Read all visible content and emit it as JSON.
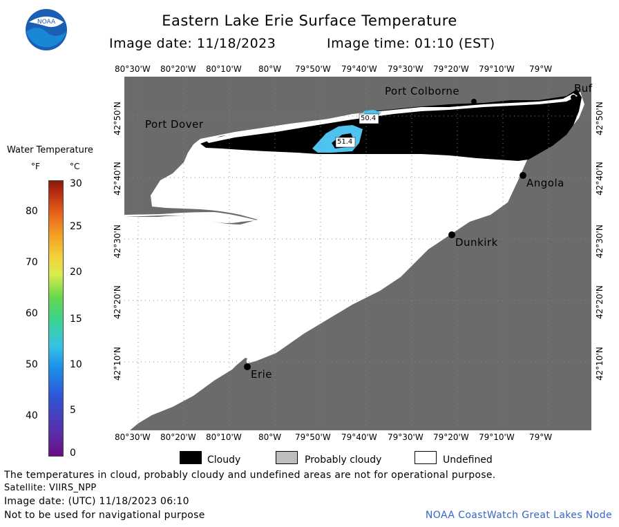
{
  "header": {
    "title": "Eastern Lake Erie Surface Temperature",
    "image_date": "Image date: 11/18/2023",
    "image_time": "Image time: 01:10 (EST)",
    "logo_text": "NOAA"
  },
  "axes": {
    "lon_labels": [
      "80°30'W",
      "80°20'W",
      "80°10'W",
      "80°W",
      "79°50'W",
      "79°40'W",
      "79°30'W",
      "79°20'W",
      "79°10'W",
      "79°W"
    ],
    "lat_labels": [
      "42°50'N",
      "42°40'N",
      "42°30'N",
      "42°20'N",
      "42°10'N"
    ]
  },
  "places": {
    "port_dover": "Port Dover",
    "port_colborne": "Port Colborne",
    "buffalo": "Buf",
    "angola": "Angola",
    "dunkirk": "Dunkirk",
    "erie": "Erie"
  },
  "temperature_labels": {
    "t1": "50.4",
    "t2": "51.4"
  },
  "legend": {
    "title": "Water Temperature",
    "unit_f": "°F",
    "unit_c": "°C",
    "f_ticks": [
      "80",
      "70",
      "60",
      "50",
      "40"
    ],
    "c_ticks": [
      "30",
      "25",
      "20",
      "15",
      "10",
      "5",
      "0"
    ]
  },
  "key": {
    "cloudy": "Cloudy",
    "probably_cloudy": "Probably cloudy",
    "undefined": "Undefined"
  },
  "footer": {
    "disclaimer": "The temperatures in cloud, probably cloudy and undefined areas are not for operational purpose.",
    "satellite": "Satellite: VIIRS_NPP",
    "utc_date": "Image date: (UTC) 11/18/2023  06:10",
    "nav_warning": "Not to be used for navigational purpose",
    "credit": "NOAA CoastWatch Great Lakes Node"
  },
  "colors": {
    "land": "#6b6b6b",
    "cloud": "#000000",
    "undefined": "#ffffff",
    "probably_cloudy": "#bdbdbd",
    "warm_water": "#4fc3f0",
    "credit_text": "#3565c8"
  }
}
